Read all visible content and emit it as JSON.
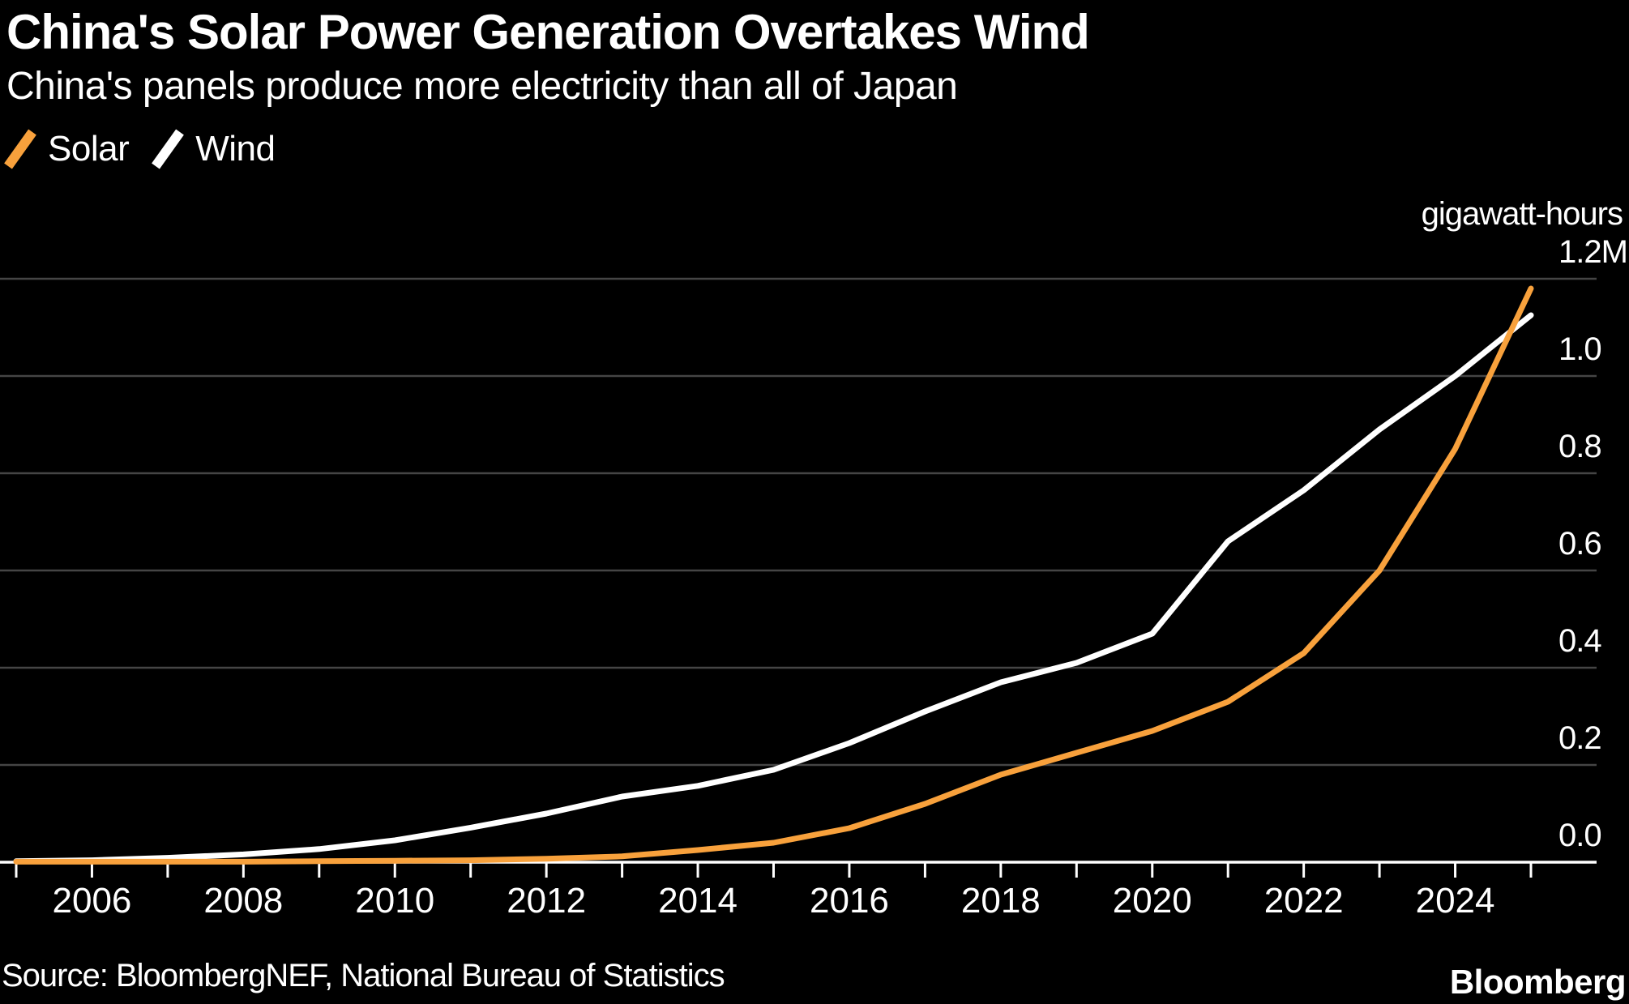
{
  "header": {
    "title": "China's Solar Power Generation Overtakes Wind",
    "subtitle": "China's panels produce more electricity than all of Japan"
  },
  "legend": [
    {
      "label": "Solar",
      "color": "#F8A13C"
    },
    {
      "label": "Wind",
      "color": "#FFFFFF"
    }
  ],
  "footer": {
    "source": "Source: BloombergNEF, National Bureau of Statistics",
    "brand": "Bloomberg"
  },
  "chart_data": {
    "type": "line",
    "title": "China's Solar Power Generation Overtakes Wind",
    "subtitle": "China's panels produce more electricity than all of Japan",
    "unit_label": "gigawatt-hours",
    "x": [
      2005,
      2006,
      2007,
      2008,
      2009,
      2010,
      2011,
      2012,
      2013,
      2014,
      2015,
      2016,
      2017,
      2018,
      2019,
      2020,
      2021,
      2022,
      2023,
      2024,
      2025
    ],
    "series": [
      {
        "name": "Solar",
        "color": "#F8A13C",
        "values": [
          0.001,
          0.001,
          0.001,
          0.001,
          0.002,
          0.003,
          0.004,
          0.007,
          0.012,
          0.025,
          0.04,
          0.07,
          0.12,
          0.18,
          0.225,
          0.27,
          0.33,
          0.43,
          0.6,
          0.85,
          1.18
        ]
      },
      {
        "name": "Wind",
        "color": "#FFFFFF",
        "values": [
          0.002,
          0.004,
          0.009,
          0.016,
          0.027,
          0.045,
          0.071,
          0.1,
          0.135,
          0.157,
          0.19,
          0.245,
          0.31,
          0.37,
          0.41,
          0.47,
          0.66,
          0.765,
          0.89,
          1.0,
          1.125
        ]
      }
    ],
    "y_ticks": [
      {
        "value": 0.0,
        "label": "0.0"
      },
      {
        "value": 0.2,
        "label": "0.2"
      },
      {
        "value": 0.4,
        "label": "0.4"
      },
      {
        "value": 0.6,
        "label": "0.6"
      },
      {
        "value": 0.8,
        "label": "0.8"
      },
      {
        "value": 1.0,
        "label": "1.0"
      },
      {
        "value": 1.2,
        "label": "1.2M"
      }
    ],
    "x_ticks": [
      {
        "year": 2006,
        "label": "2006"
      },
      {
        "year": 2008,
        "label": "2008"
      },
      {
        "year": 2010,
        "label": "2010"
      },
      {
        "year": 2012,
        "label": "2012"
      },
      {
        "year": 2014,
        "label": "2014"
      },
      {
        "year": 2016,
        "label": "2016"
      },
      {
        "year": 2018,
        "label": "2018"
      },
      {
        "year": 2020,
        "label": "2020"
      },
      {
        "year": 2022,
        "label": "2022"
      },
      {
        "year": 2024,
        "label": "2024"
      }
    ],
    "xlim": [
      2005,
      2025
    ],
    "ylim": [
      0,
      1.2
    ],
    "grid": "horizontal",
    "legend_position": "top-left",
    "background_color": "#000000",
    "grid_color": "#454545",
    "axis_color": "#FFFFFF"
  }
}
